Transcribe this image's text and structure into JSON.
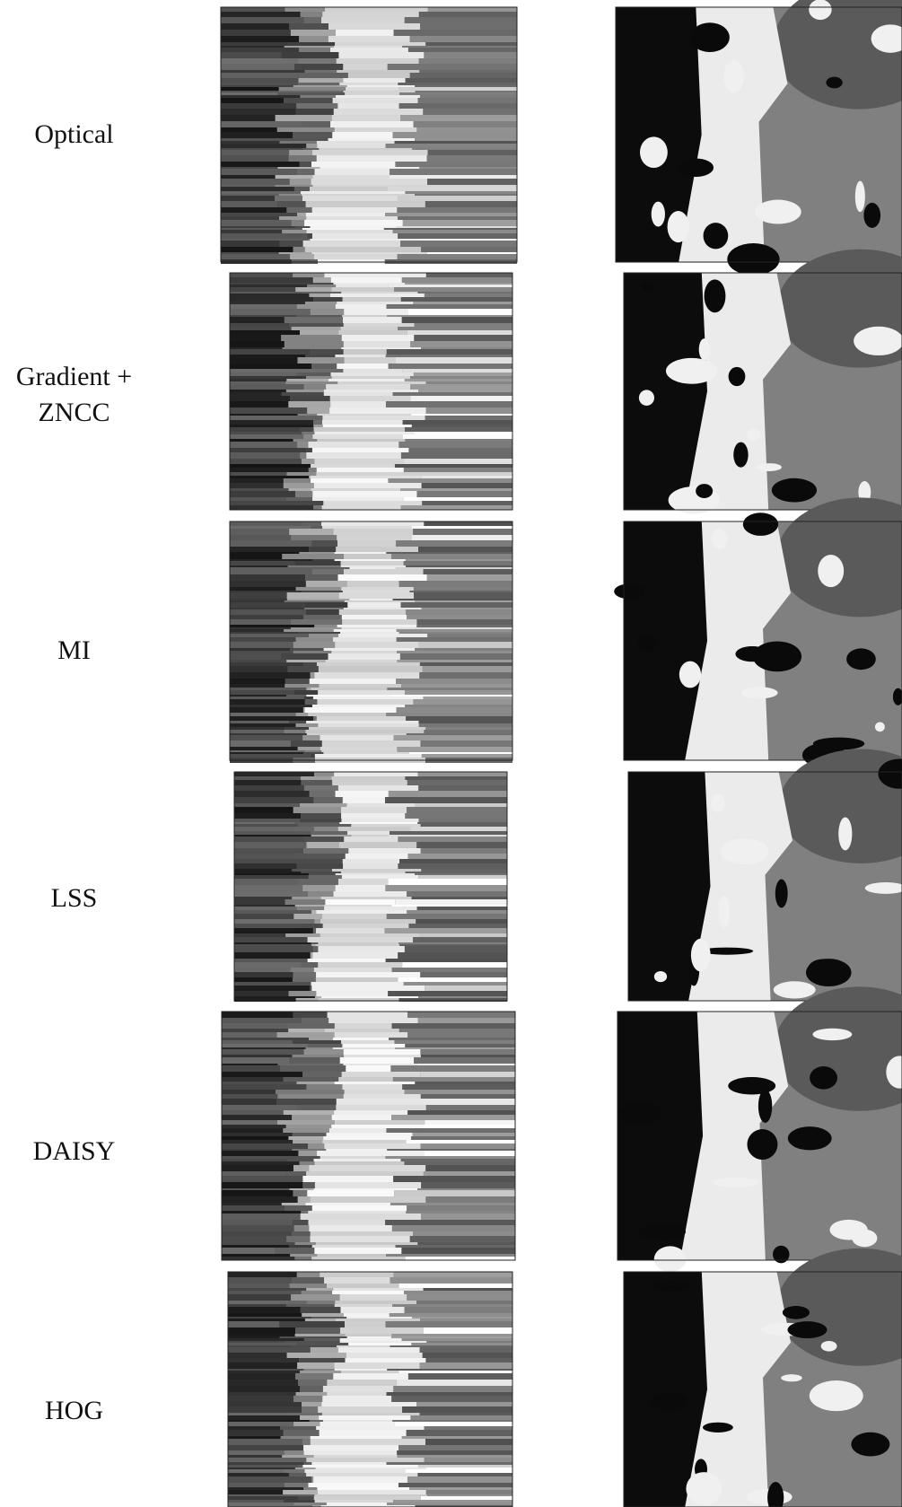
{
  "rows": [
    {
      "label": {
        "lines": [
          "Optical"
        ]
      }
    },
    {
      "label": {
        "lines": [
          "Gradient +",
          "ZNCC"
        ]
      }
    },
    {
      "label": {
        "lines": [
          "MI"
        ]
      }
    },
    {
      "label": {
        "lines": [
          "LSS"
        ]
      }
    },
    {
      "label": {
        "lines": [
          "DAISY"
        ]
      }
    },
    {
      "label": {
        "lines": [
          "HOG"
        ]
      }
    }
  ]
}
